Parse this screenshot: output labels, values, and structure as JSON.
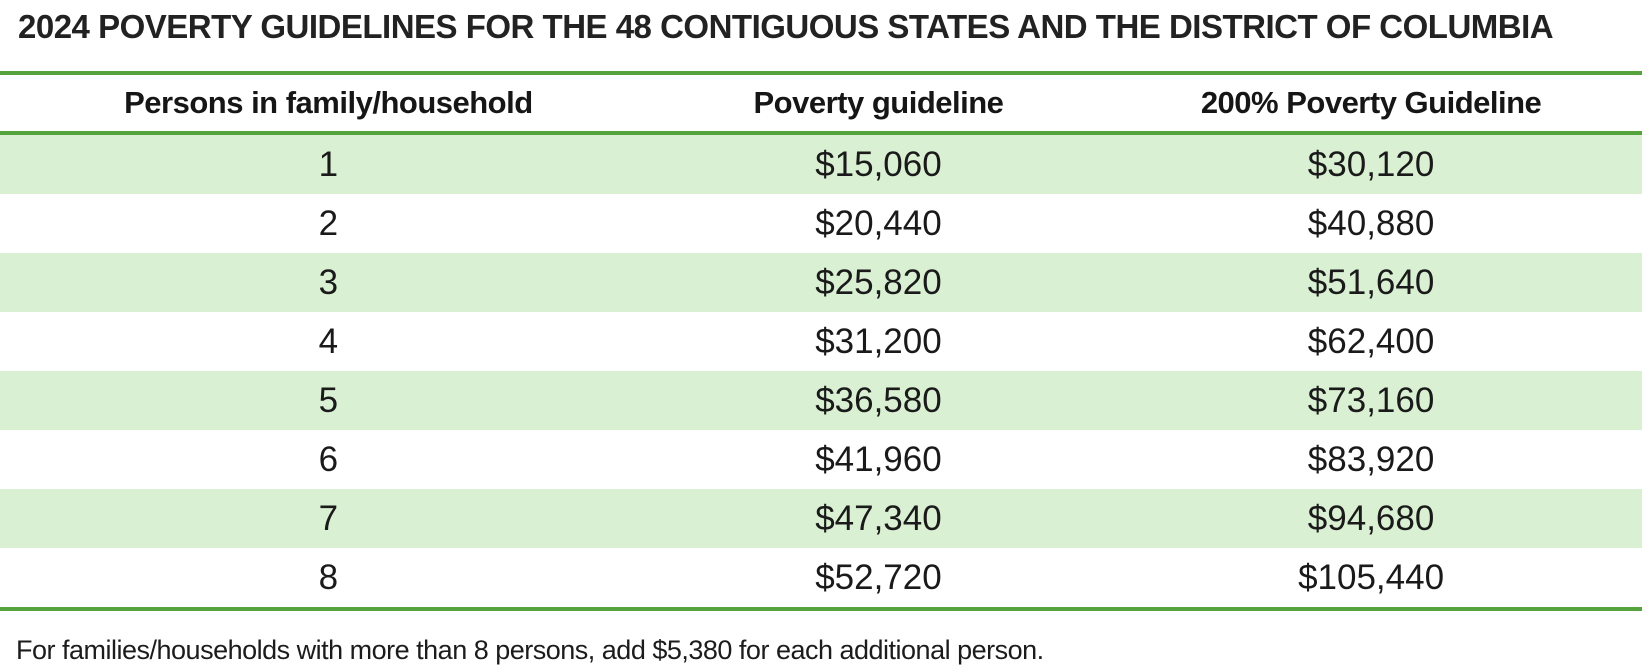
{
  "title": "2024 POVERTY GUIDELINES FOR THE 48 CONTIGUOUS STATES AND THE DISTRICT OF COLUMBIA",
  "table": {
    "headers": [
      "Persons in family/household",
      "Poverty guideline",
      "200% Poverty Guideline"
    ],
    "rows": [
      {
        "persons": "1",
        "guideline": "$15,060",
        "guideline200": "$30,120"
      },
      {
        "persons": "2",
        "guideline": "$20,440",
        "guideline200": "$40,880"
      },
      {
        "persons": "3",
        "guideline": "$25,820",
        "guideline200": "$51,640"
      },
      {
        "persons": "4",
        "guideline": "$31,200",
        "guideline200": "$62,400"
      },
      {
        "persons": "5",
        "guideline": "$36,580",
        "guideline200": "$73,160"
      },
      {
        "persons": "6",
        "guideline": "$41,960",
        "guideline200": "$83,920"
      },
      {
        "persons": "7",
        "guideline": "$47,340",
        "guideline200": "$94,680"
      },
      {
        "persons": "8",
        "guideline": "$52,720",
        "guideline200": "$105,440"
      }
    ]
  },
  "footer": {
    "note": "For families/households with more than 8 persons, add $5,380 for each additional person."
  },
  "colors": {
    "accent_green": "#55a33c",
    "row_band_green": "#d9f0d3",
    "text": "#1c1c1c"
  }
}
